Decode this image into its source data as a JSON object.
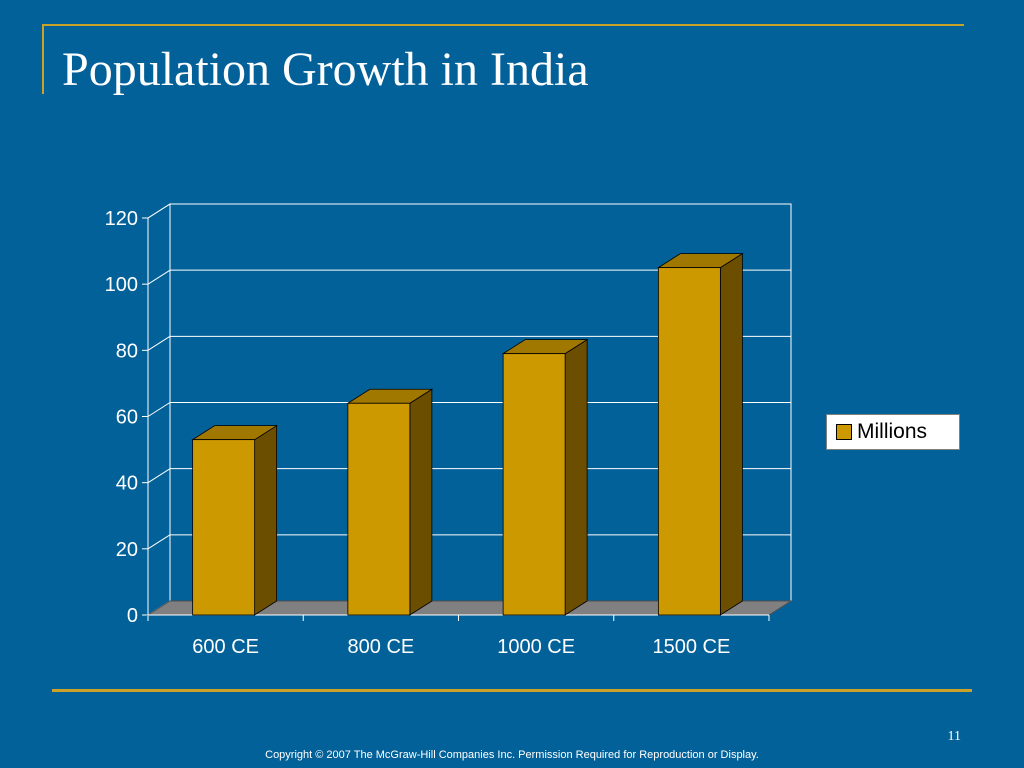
{
  "slide": {
    "title": "Population Growth in India",
    "slide_number": "11",
    "copyright": "Copyright © 2007 The McGraw-Hill Companies Inc. Permission Required for Reproduction or Display."
  },
  "colors": {
    "background": "#036199",
    "accent": "#c9a227",
    "bar_front": "#cc9900",
    "bar_top": "#a07800",
    "bar_side": "#6b4e00",
    "floor": "#808080"
  },
  "chart_data": {
    "type": "bar",
    "style": "3d-column",
    "categories": [
      "600 CE",
      "800 CE",
      "1000 CE",
      "1500 CE"
    ],
    "series": [
      {
        "name": "Millions",
        "values": [
          53,
          64,
          79,
          105
        ]
      }
    ],
    "ylim": [
      0,
      120
    ],
    "yticks": [
      0,
      20,
      40,
      60,
      80,
      100,
      120
    ],
    "grid": true,
    "legend_position": "right"
  }
}
